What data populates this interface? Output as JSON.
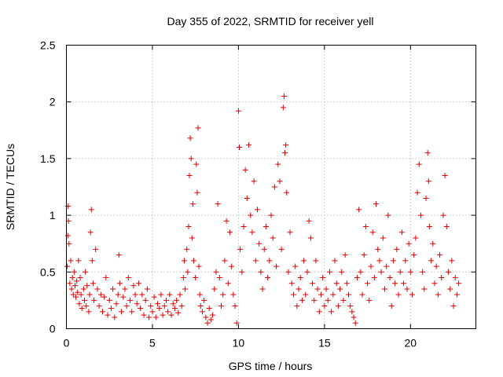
{
  "chart_data": {
    "type": "scatter",
    "title": "Day 355 of 2022, SRMTID for receiver yell",
    "xlabel": "GPS time / hours",
    "ylabel": "SRMTID / TECUs",
    "xlim": [
      0,
      23.8
    ],
    "ylim": [
      0,
      2.5
    ],
    "x_ticks": [
      0,
      5,
      10,
      15,
      20
    ],
    "x_tick_labels": [
      "0",
      "5",
      "10",
      "15",
      "20"
    ],
    "y_ticks": [
      0,
      0.5,
      1,
      1.5,
      2,
      2.5
    ],
    "y_tick_labels": [
      "0",
      "0.5",
      "1",
      "1.5",
      "2",
      "2.5"
    ],
    "grid": true,
    "marker": "+",
    "color": "#e00000",
    "series": [
      {
        "name": "SRMTID",
        "points": [
          [
            0.05,
            0.55
          ],
          [
            0.08,
            0.82
          ],
          [
            0.1,
            1.08
          ],
          [
            0.12,
            0.95
          ],
          [
            0.15,
            0.75
          ],
          [
            0.2,
            0.4
          ],
          [
            0.25,
            0.6
          ],
          [
            0.3,
            0.35
          ],
          [
            0.35,
            0.45
          ],
          [
            0.4,
            0.3
          ],
          [
            0.45,
            0.5
          ],
          [
            0.5,
            0.38
          ],
          [
            0.55,
            0.28
          ],
          [
            0.6,
            0.42
          ],
          [
            0.65,
            0.32
          ],
          [
            0.7,
            0.6
          ],
          [
            0.75,
            0.22
          ],
          [
            0.8,
            0.45
          ],
          [
            0.85,
            0.3
          ],
          [
            0.9,
            0.18
          ],
          [
            1.0,
            0.35
          ],
          [
            1.05,
            0.25
          ],
          [
            1.1,
            0.5
          ],
          [
            1.15,
            0.2
          ],
          [
            1.2,
            0.38
          ],
          [
            1.3,
            0.15
          ],
          [
            1.35,
            0.3
          ],
          [
            1.4,
            0.85
          ],
          [
            1.45,
            1.05
          ],
          [
            1.5,
            0.6
          ],
          [
            1.55,
            0.4
          ],
          [
            1.6,
            0.25
          ],
          [
            1.7,
            0.7
          ],
          [
            1.8,
            0.35
          ],
          [
            1.9,
            0.2
          ],
          [
            2.0,
            0.3
          ],
          [
            2.1,
            0.15
          ],
          [
            2.2,
            0.28
          ],
          [
            2.3,
            0.45
          ],
          [
            2.4,
            0.12
          ],
          [
            2.5,
            0.25
          ],
          [
            2.6,
            0.18
          ],
          [
            2.7,
            0.35
          ],
          [
            2.8,
            0.1
          ],
          [
            2.9,
            0.22
          ],
          [
            3.0,
            0.3
          ],
          [
            3.05,
            0.65
          ],
          [
            3.1,
            0.4
          ],
          [
            3.2,
            0.15
          ],
          [
            3.3,
            0.28
          ],
          [
            3.4,
            0.35
          ],
          [
            3.5,
            0.2
          ],
          [
            3.6,
            0.45
          ],
          [
            3.7,
            0.25
          ],
          [
            3.8,
            0.15
          ],
          [
            3.9,
            0.38
          ],
          [
            4.0,
            0.3
          ],
          [
            4.1,
            0.22
          ],
          [
            4.2,
            0.4
          ],
          [
            4.3,
            0.18
          ],
          [
            4.4,
            0.3
          ],
          [
            4.5,
            0.12
          ],
          [
            4.6,
            0.25
          ],
          [
            4.7,
            0.35
          ],
          [
            4.8,
            0.1
          ],
          [
            4.9,
            0.2
          ],
          [
            5.0,
            0.15
          ],
          [
            5.1,
            0.28
          ],
          [
            5.2,
            0.1
          ],
          [
            5.3,
            0.22
          ],
          [
            5.4,
            0.18
          ],
          [
            5.5,
            0.3
          ],
          [
            5.6,
            0.12
          ],
          [
            5.7,
            0.2
          ],
          [
            5.8,
            0.25
          ],
          [
            5.9,
            0.15
          ],
          [
            6.0,
            0.3
          ],
          [
            6.1,
            0.12
          ],
          [
            6.2,
            0.22
          ],
          [
            6.3,
            0.18
          ],
          [
            6.4,
            0.25
          ],
          [
            6.5,
            0.14
          ],
          [
            6.6,
            0.3
          ],
          [
            6.7,
            0.2
          ],
          [
            6.8,
            0.45
          ],
          [
            6.85,
            0.6
          ],
          [
            6.9,
            0.35
          ],
          [
            7.0,
            0.7
          ],
          [
            7.05,
            0.5
          ],
          [
            7.1,
            0.9
          ],
          [
            7.15,
            1.35
          ],
          [
            7.2,
            1.68
          ],
          [
            7.25,
            1.5
          ],
          [
            7.3,
            0.8
          ],
          [
            7.35,
            1.1
          ],
          [
            7.4,
            0.6
          ],
          [
            7.5,
            0.45
          ],
          [
            7.55,
            1.45
          ],
          [
            7.6,
            1.2
          ],
          [
            7.65,
            1.77
          ],
          [
            7.7,
            0.55
          ],
          [
            7.75,
            0.3
          ],
          [
            7.8,
            0.2
          ],
          [
            7.9,
            0.15
          ],
          [
            8.0,
            0.25
          ],
          [
            8.1,
            0.1
          ],
          [
            8.2,
            0.05
          ],
          [
            8.3,
            0.18
          ],
          [
            8.4,
            0.08
          ],
          [
            8.5,
            0.12
          ],
          [
            8.6,
            0.35
          ],
          [
            8.7,
            0.5
          ],
          [
            8.8,
            1.1
          ],
          [
            8.9,
            0.45
          ],
          [
            9.0,
            0.2
          ],
          [
            9.1,
            0.3
          ],
          [
            9.2,
            0.6
          ],
          [
            9.3,
            0.95
          ],
          [
            9.4,
            0.4
          ],
          [
            9.5,
            0.85
          ],
          [
            9.6,
            0.55
          ],
          [
            9.7,
            0.3
          ],
          [
            9.8,
            0.2
          ],
          [
            9.9,
            0.05
          ],
          [
            10.0,
            1.92
          ],
          [
            10.05,
            1.6
          ],
          [
            10.1,
            0.7
          ],
          [
            10.2,
            0.5
          ],
          [
            10.3,
            0.9
          ],
          [
            10.4,
            1.4
          ],
          [
            10.5,
            1.15
          ],
          [
            10.6,
            1.62
          ],
          [
            10.7,
            1.0
          ],
          [
            10.8,
            0.85
          ],
          [
            10.9,
            1.3
          ],
          [
            11.0,
            0.6
          ],
          [
            11.1,
            1.05
          ],
          [
            11.2,
            0.75
          ],
          [
            11.3,
            0.5
          ],
          [
            11.4,
            0.35
          ],
          [
            11.5,
            0.7
          ],
          [
            11.6,
            0.9
          ],
          [
            11.7,
            0.45
          ],
          [
            11.8,
            0.6
          ],
          [
            11.9,
            1.0
          ],
          [
            12.0,
            0.8
          ],
          [
            12.1,
            1.25
          ],
          [
            12.2,
            0.55
          ],
          [
            12.3,
            1.45
          ],
          [
            12.4,
            1.3
          ],
          [
            12.5,
            0.7
          ],
          [
            12.6,
            1.95
          ],
          [
            12.65,
            2.05
          ],
          [
            12.7,
            1.55
          ],
          [
            12.75,
            1.62
          ],
          [
            12.8,
            1.2
          ],
          [
            12.9,
            0.5
          ],
          [
            13.0,
            0.85
          ],
          [
            13.1,
            0.4
          ],
          [
            13.2,
            0.3
          ],
          [
            13.3,
            0.55
          ],
          [
            13.4,
            0.2
          ],
          [
            13.5,
            0.35
          ],
          [
            13.6,
            0.45
          ],
          [
            13.7,
            0.25
          ],
          [
            13.8,
            0.6
          ],
          [
            13.9,
            0.3
          ],
          [
            14.0,
            0.5
          ],
          [
            14.1,
            0.95
          ],
          [
            14.2,
            0.8
          ],
          [
            14.3,
            0.4
          ],
          [
            14.4,
            0.25
          ],
          [
            14.5,
            0.6
          ],
          [
            14.6,
            0.35
          ],
          [
            14.7,
            0.15
          ],
          [
            14.8,
            0.3
          ],
          [
            14.9,
            0.45
          ],
          [
            15.0,
            0.2
          ],
          [
            15.1,
            0.35
          ],
          [
            15.2,
            0.25
          ],
          [
            15.3,
            0.5
          ],
          [
            15.4,
            0.15
          ],
          [
            15.5,
            0.3
          ],
          [
            15.6,
            0.6
          ],
          [
            15.7,
            0.4
          ],
          [
            15.8,
            0.2
          ],
          [
            15.9,
            0.35
          ],
          [
            16.0,
            0.5
          ],
          [
            16.1,
            0.25
          ],
          [
            16.2,
            0.65
          ],
          [
            16.3,
            0.4
          ],
          [
            16.4,
            0.3
          ],
          [
            16.5,
            0.2
          ],
          [
            16.6,
            0.15
          ],
          [
            16.7,
            0.1
          ],
          [
            16.8,
            0.05
          ],
          [
            16.9,
            0.45
          ],
          [
            17.0,
            1.05
          ],
          [
            17.1,
            0.5
          ],
          [
            17.2,
            0.3
          ],
          [
            17.3,
            0.65
          ],
          [
            17.4,
            0.9
          ],
          [
            17.5,
            0.4
          ],
          [
            17.6,
            0.25
          ],
          [
            17.7,
            0.55
          ],
          [
            17.8,
            0.85
          ],
          [
            17.9,
            0.45
          ],
          [
            18.0,
            1.1
          ],
          [
            18.1,
            0.7
          ],
          [
            18.2,
            0.6
          ],
          [
            18.3,
            0.5
          ],
          [
            18.4,
            0.8
          ],
          [
            18.5,
            0.35
          ],
          [
            18.6,
            0.55
          ],
          [
            18.7,
            1.0
          ],
          [
            18.8,
            0.45
          ],
          [
            18.9,
            0.2
          ],
          [
            19.0,
            0.6
          ],
          [
            19.1,
            0.4
          ],
          [
            19.2,
            0.7
          ],
          [
            19.3,
            0.3
          ],
          [
            19.4,
            0.5
          ],
          [
            19.5,
            0.85
          ],
          [
            19.6,
            0.4
          ],
          [
            19.7,
            0.6
          ],
          [
            19.8,
            0.35
          ],
          [
            19.9,
            0.75
          ],
          [
            20.0,
            0.5
          ],
          [
            20.1,
            0.3
          ],
          [
            20.2,
            0.65
          ],
          [
            20.3,
            0.8
          ],
          [
            20.4,
            1.2
          ],
          [
            20.5,
            1.45
          ],
          [
            20.6,
            1.0
          ],
          [
            20.7,
            0.5
          ],
          [
            20.8,
            0.35
          ],
          [
            20.9,
            1.15
          ],
          [
            21.0,
            1.55
          ],
          [
            21.05,
            1.3
          ],
          [
            21.1,
            0.9
          ],
          [
            21.2,
            0.6
          ],
          [
            21.3,
            0.75
          ],
          [
            21.4,
            0.4
          ],
          [
            21.5,
            0.55
          ],
          [
            21.6,
            0.3
          ],
          [
            21.7,
            0.65
          ],
          [
            21.8,
            0.45
          ],
          [
            21.9,
            1.0
          ],
          [
            22.0,
            1.35
          ],
          [
            22.1,
            0.9
          ],
          [
            22.2,
            0.5
          ],
          [
            22.3,
            0.35
          ],
          [
            22.4,
            0.6
          ],
          [
            22.5,
            0.2
          ],
          [
            22.6,
            0.45
          ],
          [
            22.7,
            0.3
          ],
          [
            22.8,
            0.4
          ]
        ]
      }
    ]
  }
}
